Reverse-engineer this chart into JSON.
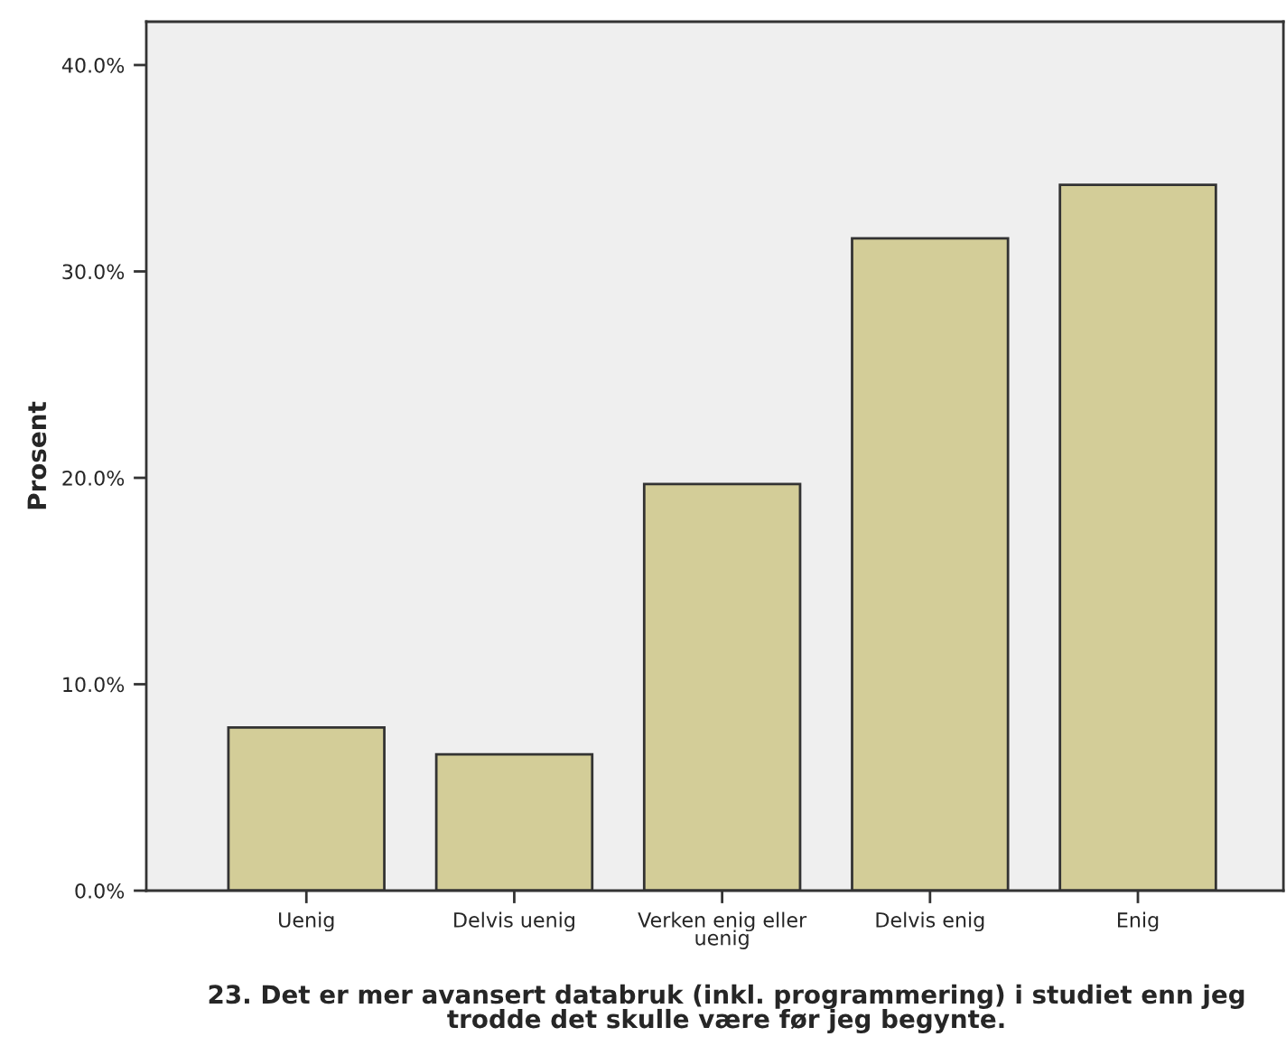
{
  "chart_data": {
    "type": "bar",
    "xlabel": "23. Det er mer avansert databruk (inkl. programmering) i studiet enn jeg trodde det skulle være før jeg begynte.",
    "ylabel": "Prosent",
    "categories": [
      "Uenig",
      "Delvis uenig",
      "Verken enig eller uenig",
      "Delvis enig",
      "Enig"
    ],
    "values": [
      7.9,
      6.6,
      19.7,
      31.6,
      34.2
    ],
    "color": "#d3cd98",
    "ylim": [
      0,
      42.1
    ],
    "yticks": [
      {
        "value": 0,
        "label": "0.0%"
      },
      {
        "value": 10,
        "label": "10.0%"
      },
      {
        "value": 20,
        "label": "20.0%"
      },
      {
        "value": 30,
        "label": "30.0%"
      },
      {
        "value": 40,
        "label": "40.0%"
      }
    ],
    "grid": false
  }
}
